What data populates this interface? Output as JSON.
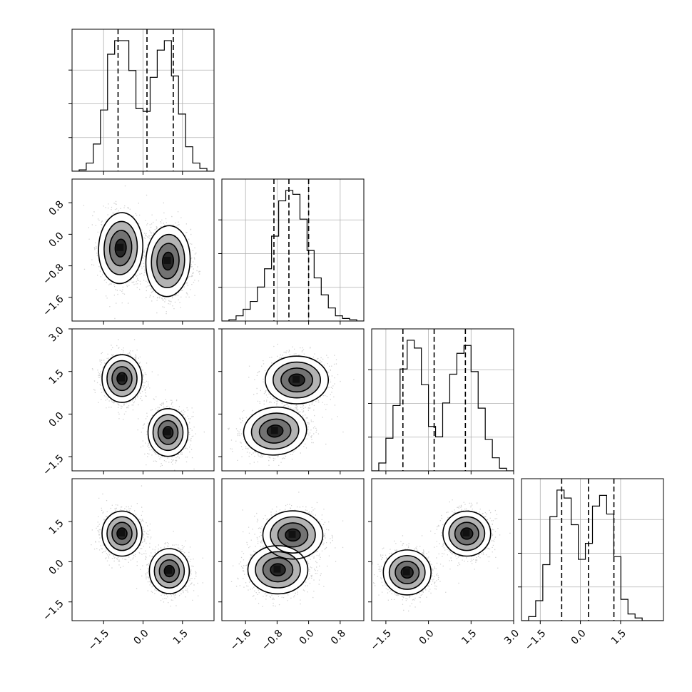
{
  "chart_data": {
    "type": "corner",
    "n_parameters": 4,
    "labels": [
      "",
      "",
      "",
      ""
    ],
    "quantiles": [
      0.16,
      0.5,
      0.84
    ],
    "quantile_values": [
      [
        -0.95,
        0.15,
        1.15
      ],
      [
        -0.88,
        -0.5,
        0.0
      ],
      [
        -0.9,
        0.2,
        1.3
      ],
      [
        -0.7,
        0.3,
        1.25
      ]
    ],
    "axis_ranges": [
      [
        -2.7,
        2.7
      ],
      [
        -2.2,
        1.4
      ],
      [
        -2.0,
        3.0
      ],
      [
        -2.2,
        3.1
      ]
    ],
    "tick_labels": {
      "param0": [
        "−1.5",
        "0.0",
        "1.5"
      ],
      "param1": [
        "−1.6",
        "−0.8",
        "0.0",
        "0.8"
      ],
      "param2": [
        "−1.5",
        "0.0",
        "1.5",
        "3.0"
      ],
      "param3": [
        "−1.5",
        "0.0",
        "1.5"
      ]
    },
    "tick_values": {
      "param0": [
        -1.5,
        0.0,
        1.5
      ],
      "param1": [
        -1.6,
        -0.8,
        0.0,
        0.8
      ],
      "param2": [
        -1.5,
        0.0,
        1.5,
        3.0
      ],
      "param3": [
        -1.5,
        0.0,
        1.5
      ]
    },
    "histograms": [
      {
        "parameter": 0,
        "bin_edges": [
          -2.7,
          -2.43,
          -2.16,
          -1.89,
          -1.62,
          -1.35,
          -1.08,
          -0.81,
          -0.54,
          -0.27,
          0.0,
          0.27,
          0.54,
          0.81,
          1.08,
          1.35,
          1.62,
          1.89,
          2.16,
          2.43,
          2.7
        ],
        "counts": [
          0.0,
          0.01,
          0.06,
          0.2,
          0.45,
          0.86,
          0.96,
          0.96,
          0.74,
          0.46,
          0.44,
          0.69,
          0.89,
          0.96,
          0.7,
          0.42,
          0.18,
          0.06,
          0.02,
          0.0
        ]
      },
      {
        "parameter": 1,
        "bin_edges": [
          -2.2,
          -2.02,
          -1.84,
          -1.66,
          -1.48,
          -1.3,
          -1.12,
          -0.94,
          -0.76,
          -0.58,
          -0.4,
          -0.22,
          -0.04,
          0.14,
          0.32,
          0.5,
          0.68,
          0.86,
          1.04,
          1.22,
          1.4
        ],
        "counts": [
          0.0,
          0.01,
          0.04,
          0.09,
          0.15,
          0.26,
          0.4,
          0.65,
          0.92,
          1.0,
          0.97,
          0.78,
          0.54,
          0.33,
          0.2,
          0.1,
          0.04,
          0.02,
          0.01,
          0.0
        ]
      },
      {
        "parameter": 2,
        "bin_edges": [
          -2.0,
          -1.75,
          -1.5,
          -1.25,
          -1.0,
          -0.75,
          -0.5,
          -0.25,
          0.0,
          0.25,
          0.5,
          0.75,
          1.0,
          1.25,
          1.5,
          1.75,
          2.0,
          2.25,
          2.5,
          2.75,
          3.0
        ],
        "counts": [
          0.0,
          0.06,
          0.25,
          0.5,
          0.78,
          1.0,
          0.94,
          0.66,
          0.34,
          0.26,
          0.52,
          0.74,
          0.9,
          0.96,
          0.76,
          0.48,
          0.24,
          0.1,
          0.02,
          0.0
        ]
      },
      {
        "parameter": 3,
        "bin_edges": [
          -2.2,
          -1.935,
          -1.67,
          -1.405,
          -1.14,
          -0.875,
          -0.61,
          -0.345,
          -0.08,
          0.185,
          0.45,
          0.715,
          0.98,
          1.245,
          1.51,
          1.775,
          2.04,
          2.305,
          2.57,
          2.835,
          3.1
        ],
        "counts": [
          0.0,
          0.03,
          0.15,
          0.42,
          0.78,
          0.98,
          0.92,
          0.72,
          0.46,
          0.58,
          0.86,
          0.94,
          0.8,
          0.48,
          0.16,
          0.05,
          0.02,
          0.0,
          0.0,
          0.0
        ]
      }
    ],
    "scatter_panels": [
      {
        "x_param": 0,
        "y_param": 1,
        "modes": [
          {
            "x": -0.85,
            "y": -0.35,
            "sx": 0.42,
            "sy": 0.45,
            "rho": -0.1
          },
          {
            "x": 0.95,
            "y": -0.68,
            "sx": 0.42,
            "sy": 0.45,
            "rho": -0.1
          }
        ]
      },
      {
        "x_param": 0,
        "y_param": 2,
        "modes": [
          {
            "x": -0.8,
            "y": 1.25,
            "sx": 0.38,
            "sy": 0.42,
            "rho": 0.0
          },
          {
            "x": 0.95,
            "y": -0.65,
            "sx": 0.38,
            "sy": 0.42,
            "rho": 0.0
          }
        ]
      },
      {
        "x_param": 0,
        "y_param": 3,
        "modes": [
          {
            "x": -0.8,
            "y": 1.05,
            "sx": 0.38,
            "sy": 0.42,
            "rho": 0.0
          },
          {
            "x": 1.0,
            "y": -0.35,
            "sx": 0.38,
            "sy": 0.42,
            "rho": 0.0
          }
        ]
      },
      {
        "x_param": 1,
        "y_param": 2,
        "modes": [
          {
            "x": -0.3,
            "y": 1.2,
            "sx": 0.4,
            "sy": 0.42,
            "rho": 0.0
          },
          {
            "x": -0.85,
            "y": -0.6,
            "sx": 0.4,
            "sy": 0.42,
            "rho": 0.2
          }
        ]
      },
      {
        "x_param": 1,
        "y_param": 3,
        "modes": [
          {
            "x": -0.4,
            "y": 1.0,
            "sx": 0.38,
            "sy": 0.45,
            "rho": 0.0
          },
          {
            "x": -0.78,
            "y": -0.3,
            "sx": 0.38,
            "sy": 0.45,
            "rho": 0.0
          }
        ]
      },
      {
        "x_param": 2,
        "y_param": 3,
        "modes": [
          {
            "x": -0.75,
            "y": -0.4,
            "sx": 0.42,
            "sy": 0.42,
            "rho": 0.0
          },
          {
            "x": 1.35,
            "y": 1.05,
            "sx": 0.42,
            "sy": 0.42,
            "rho": 0.0
          }
        ]
      }
    ],
    "contour_levels_sigma": [
      0.5,
      1.0,
      1.5,
      2.0
    ],
    "grid": true,
    "colors": {
      "points": "#000000",
      "lines": "#000000",
      "grid": "#b0b0b0",
      "background": "#ffffff"
    }
  }
}
